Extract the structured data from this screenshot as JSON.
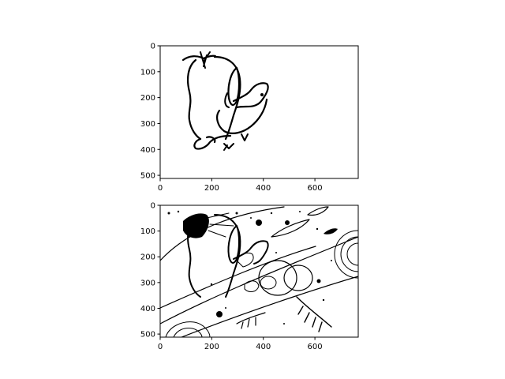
{
  "chart_data": [
    {
      "type": "image",
      "title": "",
      "xlabel": "",
      "ylabel": "",
      "xlim": [
        0,
        768
      ],
      "ylim": [
        512,
        0
      ],
      "xticks": [
        "0",
        "200",
        "400",
        "600"
      ],
      "yticks": [
        "0",
        "100",
        "200",
        "300",
        "400",
        "500"
      ],
      "grid": false,
      "content": "sketch"
    },
    {
      "type": "image",
      "title": "",
      "xlabel": "",
      "ylabel": "",
      "xlim": [
        0,
        768
      ],
      "ylim": [
        512,
        0
      ],
      "xticks": [
        "0",
        "200",
        "400",
        "600"
      ],
      "yticks": [
        "0",
        "100",
        "200",
        "300",
        "400",
        "500"
      ],
      "grid": false,
      "content": "detailed-drawing"
    }
  ]
}
